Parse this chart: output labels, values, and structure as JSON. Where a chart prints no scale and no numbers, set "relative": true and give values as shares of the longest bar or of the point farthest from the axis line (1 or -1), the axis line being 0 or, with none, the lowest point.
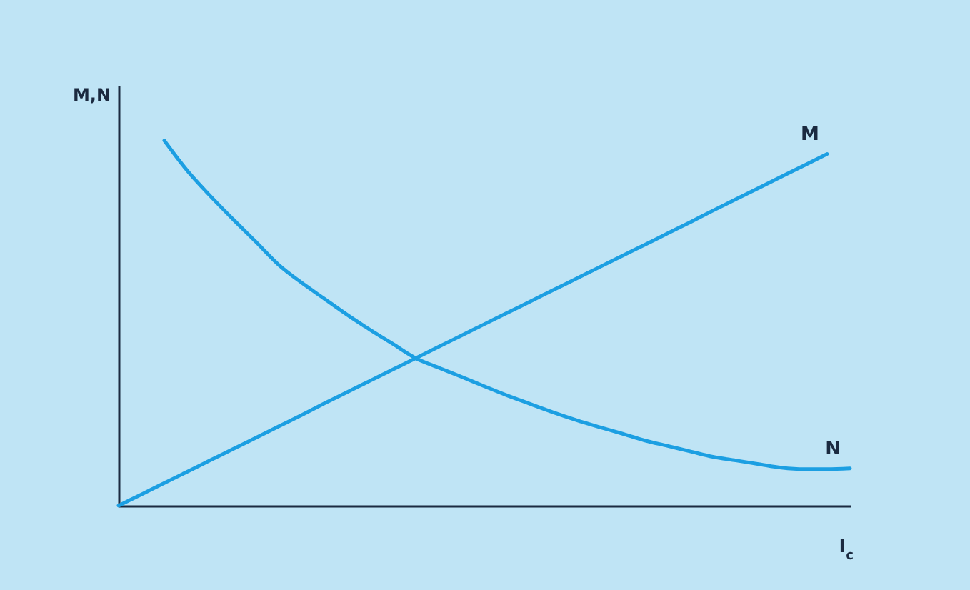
{
  "chart_data": {
    "type": "line",
    "relative": true,
    "xlabel": "I$_{c}$",
    "ylabel": "M,N",
    "categories": [
      null,
      null,
      null,
      null,
      null,
      null,
      null,
      null,
      null,
      null,
      null,
      null,
      null,
      null,
      null,
      null,
      null,
      null,
      null,
      null,
      null,
      null,
      null,
      null,
      null,
      null,
      null,
      null,
      null,
      null,
      null,
      null,
      null
    ],
    "series": [
      {
        "name": "M",
        "color": "#1c9fe2",
        "values": [
          0,
          0.031,
          0.062,
          0.093,
          0.124,
          0.155,
          0.186,
          0.217,
          0.248,
          0.28,
          0.311,
          0.342,
          0.373,
          0.404,
          0.435,
          0.466,
          0.497,
          0.528,
          0.559,
          0.59,
          0.621,
          0.652,
          0.683,
          0.714,
          0.745,
          0.776,
          0.808,
          0.839,
          0.87,
          0.901,
          0.932,
          0.963,
          null
        ]
      },
      {
        "name": "N",
        "color": "#1c9fe2",
        "values": [
          null,
          null,
          1.0,
          0.918,
          0.849,
          0.785,
          0.723,
          0.66,
          0.611,
          0.567,
          0.523,
          0.482,
          0.443,
          0.404,
          0.378,
          0.353,
          0.327,
          0.302,
          0.279,
          0.256,
          0.235,
          0.216,
          0.198,
          0.179,
          0.164,
          0.149,
          0.134,
          0.124,
          0.114,
          0.104,
          0.1,
          0.1,
          0.102
        ]
      }
    ]
  }
}
